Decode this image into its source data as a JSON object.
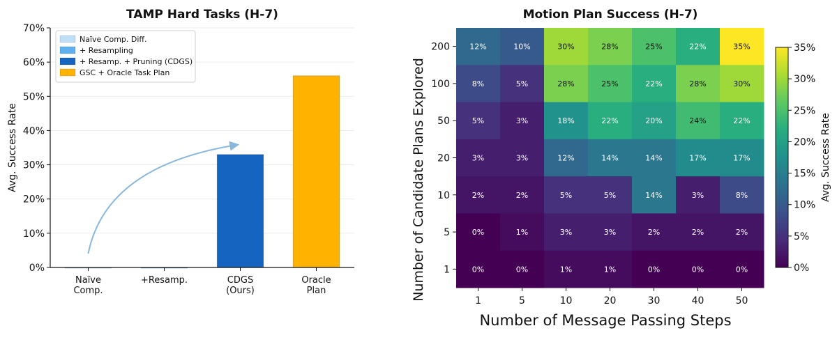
{
  "chart_data": [
    {
      "type": "bar",
      "title": "TAMP Hard Tasks (H-7)",
      "xlabel": "",
      "ylabel": "Avg. Success Rate",
      "ylim": [
        0,
        70
      ],
      "yticks": [
        "0%",
        "10%",
        "20%",
        "30%",
        "40%",
        "50%",
        "60%",
        "70%"
      ],
      "categories": [
        {
          "lines": [
            "Naïve",
            "Comp."
          ],
          "value": 0,
          "color": "#bde0f7"
        },
        {
          "lines": [
            "+Resamp."
          ],
          "value": 0,
          "color": "#5fb0ee"
        },
        {
          "lines": [
            "CDGS",
            "(Ours)"
          ],
          "value": 33,
          "color": "#1565c0"
        },
        {
          "lines": [
            "Oracle",
            "Plan"
          ],
          "value": 56,
          "color": "#ffb300"
        }
      ],
      "legend": {
        "placement": "top-left",
        "entries": [
          {
            "label": "Naïve Comp. Diff.",
            "color": "#bde0f7"
          },
          {
            "label": "+ Resampling",
            "color": "#5fb0ee"
          },
          {
            "label": "+ Resamp. + Pruning (CDGS)",
            "color": "#1565c0"
          },
          {
            "label": "GSC + Oracle Task Plan",
            "color": "#ffb300"
          }
        ]
      },
      "arrow": {
        "from": [
          0,
          2
        ],
        "to": [
          2,
          33
        ],
        "color": "#8ab8dc"
      },
      "grid": true
    },
    {
      "type": "heatmap",
      "title": "Motion Plan Success (H-7)",
      "xlabel": "Number of Message Passing Steps",
      "ylabel": "Number of Candidate Plans Explored",
      "x": [
        "1",
        "5",
        "10",
        "20",
        "30",
        "40",
        "50"
      ],
      "y": [
        "200",
        "100",
        "50",
        "20",
        "10",
        "5",
        "1"
      ],
      "y_tick_labels": [
        "200",
        "100",
        "50",
        "20",
        "10",
        "5",
        "1"
      ],
      "values": [
        [
          12,
          10,
          30,
          28,
          25,
          22,
          35
        ],
        [
          8,
          5,
          28,
          25,
          22,
          28,
          30
        ],
        [
          5,
          3,
          18,
          22,
          20,
          24,
          22
        ],
        [
          3,
          3,
          12,
          14,
          14,
          17,
          17
        ],
        [
          2,
          2,
          5,
          5,
          14,
          3,
          8
        ],
        [
          0,
          1,
          3,
          3,
          2,
          2,
          2
        ],
        [
          0,
          0,
          1,
          1,
          0,
          0,
          0
        ]
      ],
      "value_suffix": "%",
      "colorbar": {
        "label": "Avg. Success Rate",
        "range": [
          0,
          35
        ],
        "ticks": [
          "0%",
          "5%",
          "10%",
          "15%",
          "20%",
          "25%",
          "30%",
          "35%"
        ],
        "colormap": "viridis"
      }
    }
  ]
}
